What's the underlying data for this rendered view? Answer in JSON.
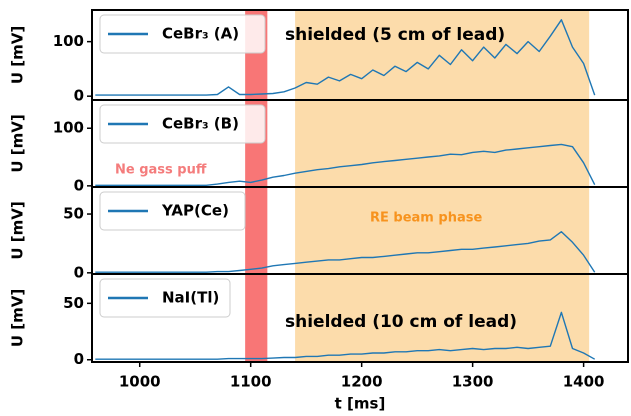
{
  "shared_x_axis": {
    "xlim": [
      957,
      1440
    ],
    "xticks": [
      1000,
      1100,
      1200,
      1300,
      1400
    ],
    "xlabel": "t [ms]",
    "shaded_regions": [
      {
        "xrange": [
          1095,
          1115
        ],
        "color": "#f87676"
      },
      {
        "xrange": [
          1140,
          1405
        ],
        "color": "#fcdcab"
      }
    ]
  },
  "chart_data": [
    {
      "type": "line",
      "ylabel": "U [mV]",
      "ylim": [
        -7,
        158
      ],
      "yticks": [
        0,
        100
      ],
      "x": [
        960,
        970,
        980,
        990,
        1000,
        1010,
        1020,
        1030,
        1040,
        1050,
        1060,
        1070,
        1080,
        1090,
        1100,
        1110,
        1120,
        1130,
        1140,
        1150,
        1160,
        1170,
        1180,
        1190,
        1200,
        1210,
        1220,
        1230,
        1240,
        1250,
        1260,
        1270,
        1280,
        1290,
        1300,
        1310,
        1320,
        1330,
        1340,
        1350,
        1360,
        1370,
        1380,
        1390,
        1400,
        1410
      ],
      "series": [
        {
          "name": "CeBr₃ (A)",
          "color": "#1f77b4",
          "values": [
            2,
            2,
            2,
            2,
            2,
            2,
            2,
            2,
            2,
            2,
            2,
            3,
            17,
            3,
            3,
            4,
            5,
            8,
            15,
            25,
            22,
            35,
            28,
            40,
            32,
            48,
            38,
            55,
            45,
            62,
            50,
            75,
            58,
            85,
            65,
            90,
            70,
            95,
            78,
            100,
            82,
            110,
            140,
            90,
            60,
            2
          ]
        }
      ],
      "annotations": [
        {
          "text": "shielded (5 cm of lead)",
          "color": "#000000"
        }
      ]
    },
    {
      "type": "line",
      "ylabel": "U [mV]",
      "ylim": [
        -2,
        149
      ],
      "yticks": [
        0,
        100
      ],
      "x": [
        960,
        970,
        980,
        990,
        1000,
        1010,
        1020,
        1030,
        1040,
        1050,
        1060,
        1070,
        1080,
        1090,
        1100,
        1110,
        1120,
        1130,
        1140,
        1150,
        1160,
        1170,
        1180,
        1190,
        1200,
        1210,
        1220,
        1230,
        1240,
        1250,
        1260,
        1270,
        1280,
        1290,
        1300,
        1310,
        1320,
        1330,
        1340,
        1350,
        1360,
        1370,
        1380,
        1390,
        1400,
        1410
      ],
      "series": [
        {
          "name": "CeBr₃ (B)",
          "color": "#1f77b4",
          "values": [
            1,
            1,
            1,
            1,
            1,
            1,
            1,
            1,
            1,
            1,
            1,
            3,
            6,
            8,
            6,
            10,
            15,
            18,
            22,
            25,
            28,
            30,
            33,
            35,
            37,
            40,
            42,
            44,
            46,
            48,
            50,
            52,
            55,
            54,
            58,
            60,
            58,
            62,
            64,
            66,
            68,
            70,
            72,
            68,
            40,
            2
          ]
        }
      ],
      "annotations": [
        {
          "text": "Ne gass puff",
          "color": "#f47c7c"
        }
      ]
    },
    {
      "type": "line",
      "ylabel": "U [mV]",
      "ylim": [
        -1,
        73
      ],
      "yticks": [
        0,
        50
      ],
      "x": [
        960,
        970,
        980,
        990,
        1000,
        1010,
        1020,
        1030,
        1040,
        1050,
        1060,
        1070,
        1080,
        1090,
        1100,
        1110,
        1120,
        1130,
        1140,
        1150,
        1160,
        1170,
        1180,
        1190,
        1200,
        1210,
        1220,
        1230,
        1240,
        1250,
        1260,
        1270,
        1280,
        1290,
        1300,
        1310,
        1320,
        1330,
        1340,
        1350,
        1360,
        1370,
        1380,
        1390,
        1400,
        1410
      ],
      "series": [
        {
          "name": "YAP(Ce)",
          "color": "#1f77b4",
          "values": [
            0.5,
            0.5,
            0.5,
            0.5,
            0.5,
            0.5,
            0.5,
            0.5,
            0.5,
            0.5,
            0.5,
            1,
            1,
            2,
            3,
            4,
            6,
            7,
            8,
            9,
            10,
            11,
            11,
            12,
            13,
            13,
            14,
            15,
            16,
            17,
            17,
            18,
            19,
            20,
            20,
            21,
            22,
            23,
            24,
            25,
            27,
            28,
            35,
            26,
            15,
            0.5
          ]
        }
      ],
      "annotations": [
        {
          "text": "RE beam phase",
          "color": "#f7931e"
        }
      ]
    },
    {
      "type": "line",
      "ylabel": "U [mV]",
      "ylim": [
        -2,
        76
      ],
      "yticks": [
        0,
        50
      ],
      "x": [
        960,
        970,
        980,
        990,
        1000,
        1010,
        1020,
        1030,
        1040,
        1050,
        1060,
        1070,
        1080,
        1090,
        1100,
        1110,
        1120,
        1130,
        1140,
        1150,
        1160,
        1170,
        1180,
        1190,
        1200,
        1210,
        1220,
        1230,
        1240,
        1250,
        1260,
        1270,
        1280,
        1290,
        1300,
        1310,
        1320,
        1330,
        1340,
        1350,
        1360,
        1370,
        1380,
        1390,
        1400,
        1410
      ],
      "series": [
        {
          "name": "NaI(Tl)",
          "color": "#1f77b4",
          "values": [
            0.5,
            0.5,
            0.5,
            0.5,
            0.5,
            0.5,
            0.5,
            0.5,
            0.5,
            0.5,
            0.5,
            0.5,
            1,
            1,
            1,
            1,
            1.5,
            2,
            2,
            3,
            3,
            4,
            4,
            5,
            5,
            6,
            6,
            7,
            7,
            8,
            8,
            9,
            8,
            9,
            10,
            9,
            10,
            10,
            11,
            10,
            11,
            12,
            42,
            10,
            6,
            0.5
          ]
        }
      ],
      "annotations": [
        {
          "text": "shielded (10 cm of lead)",
          "color": "#000000"
        }
      ]
    }
  ]
}
